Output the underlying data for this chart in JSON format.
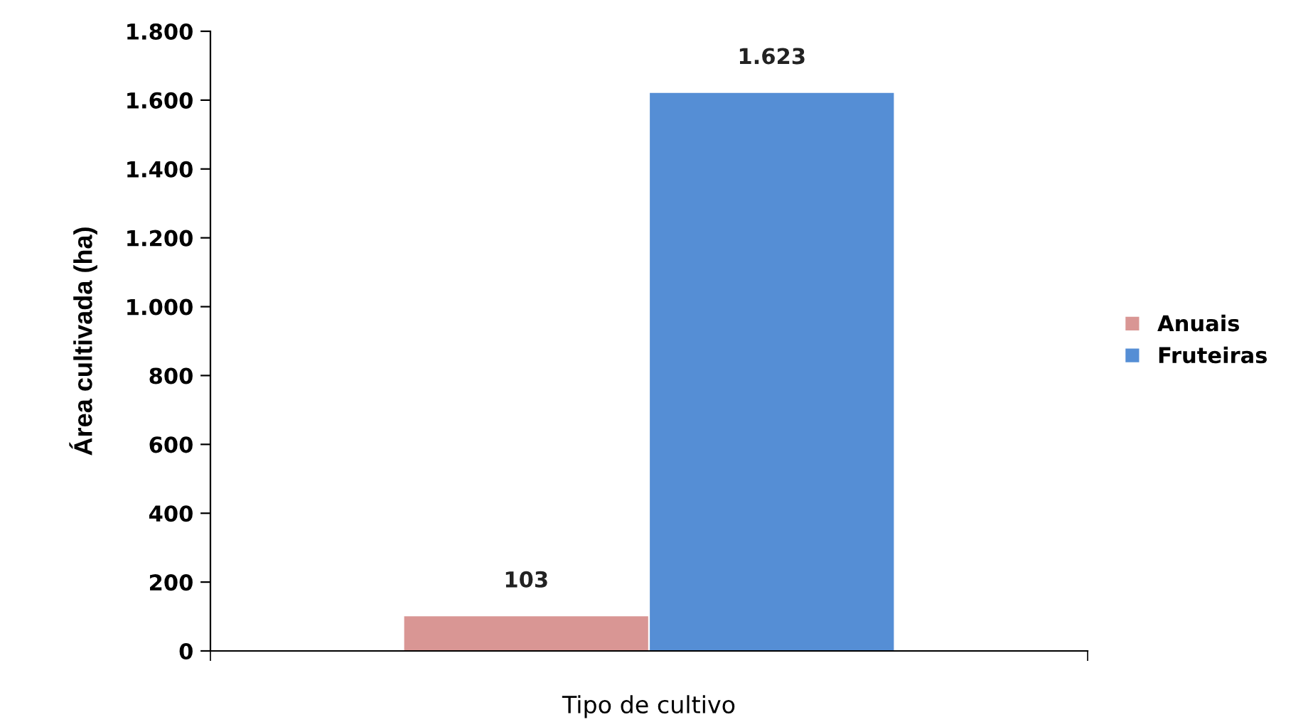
{
  "chart_data": {
    "type": "bar",
    "xlabel": "Tipo de cultivo",
    "ylabel": "Área cultivada (ha)",
    "categories": [
      null
    ],
    "series": [
      {
        "name": "Anuais",
        "color": "#d99694",
        "values": [
          103
        ],
        "value_labels": [
          "103"
        ]
      },
      {
        "name": "Fruteiras",
        "color": "#558ed5",
        "values": [
          1623
        ],
        "value_labels": [
          "1.623"
        ]
      }
    ],
    "ylim": [
      0,
      1800
    ],
    "yticks": [
      0,
      200,
      400,
      600,
      800,
      {
        "value": 1000,
        "label": "1.000"
      },
      {
        "value": 1200,
        "label": "1.200"
      },
      {
        "value": 1400,
        "label": "1.400"
      },
      {
        "value": 1600,
        "label": "1.600"
      },
      {
        "value": 1800,
        "label": "1.800"
      }
    ],
    "grid": false,
    "legend": "right"
  }
}
